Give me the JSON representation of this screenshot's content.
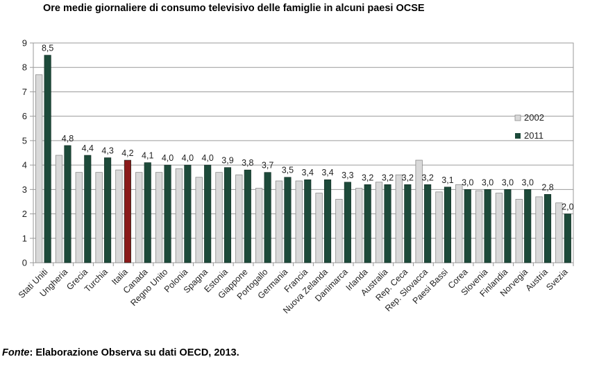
{
  "title": "Ore medie giornaliere di consumo televisivo delle famiglie in alcuni paesi OCSE",
  "source": {
    "label": "Fonte",
    "text": ": Elaborazione Observa su dati OECD, 2013."
  },
  "chart_data": {
    "type": "bar",
    "title": "Ore medie giornaliere di consumo televisivo delle famiglie in alcuni paesi OCSE",
    "xlabel": "",
    "ylabel": "",
    "ylim": [
      0,
      9
    ],
    "yticks": [
      0,
      1,
      2,
      3,
      4,
      5,
      6,
      7,
      8,
      9
    ],
    "grid": true,
    "legend_position": "right",
    "categories": [
      "Stati Uniti",
      "Ungheria",
      "Grecia",
      "Turchia",
      "Italia",
      "Canada",
      "Regno Unito",
      "Polonia",
      "Spagna",
      "Estonia",
      "Giappone",
      "Portogallo",
      "Germania",
      "Francia",
      "Nuova Zelanda",
      "Danimarca",
      "Irlanda",
      "Australia",
      "Rep. Ceca",
      "Rep. Slovacca",
      "Paesi Bassi",
      "Corea",
      "Slovenia",
      "Finlandia",
      "Norvegia",
      "Austria",
      "Svezia"
    ],
    "series": [
      {
        "name": "2002",
        "color": "#d9d9d9",
        "values": [
          7.7,
          4.4,
          3.7,
          3.7,
          3.8,
          3.7,
          3.7,
          3.85,
          3.5,
          3.7,
          3.6,
          3.05,
          3.35,
          3.35,
          2.85,
          2.6,
          3.05,
          3.3,
          3.6,
          4.2,
          2.9,
          3.2,
          2.95,
          2.85,
          2.6,
          2.7,
          2.45
        ]
      },
      {
        "name": "2011",
        "color": "#1d4a3a",
        "values": [
          8.5,
          4.8,
          4.4,
          4.3,
          4.2,
          4.1,
          4.0,
          4.0,
          4.0,
          3.9,
          3.8,
          3.7,
          3.5,
          3.4,
          3.4,
          3.3,
          3.2,
          3.2,
          3.2,
          3.2,
          3.1,
          3.0,
          3.0,
          3.0,
          3.0,
          2.8,
          2.0
        ],
        "labels": [
          "8,5",
          "4,8",
          "4,4",
          "4,3",
          "4,2",
          "4,1",
          "4,0",
          "4,0",
          "4,0",
          "3,9",
          "3,8",
          "3,7",
          "3,5",
          "3,4",
          "3,4",
          "3,3",
          "3,2",
          "3,2",
          "3,2",
          "3,2",
          "3,1",
          "3,0",
          "3,0",
          "3,0",
          "3,0",
          "2,8",
          "2,0"
        ]
      }
    ],
    "highlight": {
      "category": "Italia",
      "series": "2011",
      "color": "#8b1a1a"
    }
  }
}
